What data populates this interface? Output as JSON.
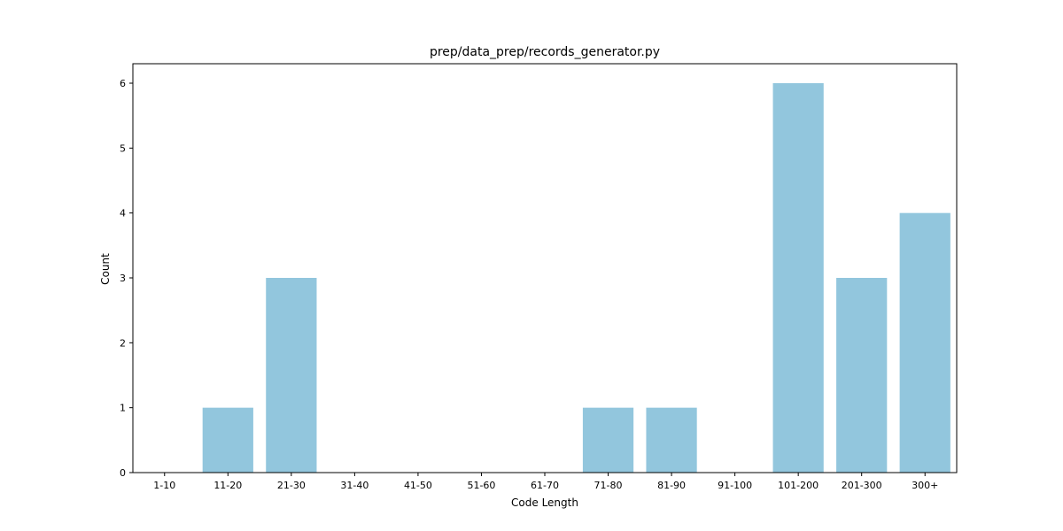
{
  "chart_data": {
    "type": "bar",
    "title": "prep/data_prep/records_generator.py",
    "xlabel": "Code Length",
    "ylabel": "Count",
    "categories": [
      "1-10",
      "11-20",
      "21-30",
      "31-40",
      "41-50",
      "51-60",
      "61-70",
      "71-80",
      "81-90",
      "91-100",
      "101-200",
      "201-300",
      "300+"
    ],
    "values": [
      0,
      1,
      3,
      0,
      0,
      0,
      0,
      1,
      1,
      0,
      6,
      3,
      4
    ],
    "ylim": [
      0,
      6.3
    ],
    "yticks": [
      0,
      1,
      2,
      3,
      4,
      5,
      6
    ],
    "grid": false,
    "bar_color": "#92c6dd"
  }
}
